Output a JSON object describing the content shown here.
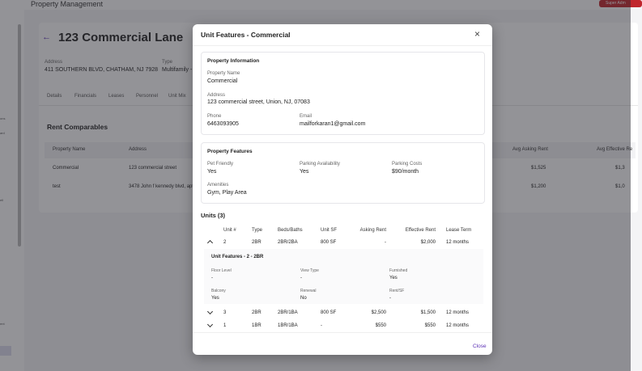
{
  "background": {
    "app_title": "Property Management",
    "user_button": "Super Adm",
    "property_name": "123 Commercial Lane",
    "address_label": "Address",
    "address": "411 SOUTHERN BLVD, CHATHAM, NJ 7928",
    "type_label": "Type",
    "type": "Multifamily -",
    "tabs": [
      "Details",
      "Financials",
      "Leases",
      "Personnel",
      "Unit Mix"
    ],
    "sidebar": [
      "ons",
      "ard",
      "ell",
      "ent"
    ],
    "section_title": "Rent Comparables",
    "table": {
      "headers": [
        "Property Name",
        "Address",
        "Avg Asking Rent",
        "Avg Effective Re"
      ],
      "rows": [
        [
          "Commercial",
          "123 commercial street",
          "$1,525",
          "$1,3"
        ],
        [
          "test",
          "3478 John f kennedy blvd, apt",
          "$1,200",
          "$1,0"
        ]
      ]
    }
  },
  "modal": {
    "title": "Unit Features - Commercial",
    "close_button": "Close",
    "property_information": {
      "heading": "Property Information",
      "name_label": "Property Name",
      "name": "Commercial",
      "address_label": "Address",
      "address": "123 commercial street, Union, NJ, 07083",
      "phone_label": "Phone",
      "phone": "6463093905",
      "email_label": "Email",
      "email": "mailforkaran1@gmail.com"
    },
    "property_features": {
      "heading": "Property Features",
      "pet_label": "Pet Friendly",
      "pet": "Yes",
      "parking_label": "Parking Availability",
      "parking": "Yes",
      "parking_cost_label": "Parking Costs",
      "parking_cost": "$90/month",
      "amenities_label": "Amenities",
      "amenities": "Gym, Play Area"
    },
    "units": {
      "heading": "Units (3)",
      "headers": [
        "Unit #",
        "Type",
        "Beds/Baths",
        "Unit SF",
        "Asking Rent",
        "Effective Rent",
        "Lease Term"
      ],
      "rows": [
        [
          "2",
          "2BR",
          "2BR/2BA",
          "800 SF",
          "-",
          "$2,000",
          "12 months"
        ],
        [
          "3",
          "2BR",
          "2BR/1BA",
          "800 SF",
          "$2,500",
          "$1,500",
          "12 months"
        ],
        [
          "1",
          "1BR",
          "1BR/1BA",
          "-",
          "$550",
          "$550",
          "12 months"
        ]
      ],
      "expanded": {
        "title": "Unit Features - 2 - 2BR",
        "fields": [
          [
            "Floor Level",
            "-"
          ],
          [
            "View Type",
            "-"
          ],
          [
            "Furnished",
            "Yes"
          ],
          [
            "Balcony",
            "Yes"
          ],
          [
            "Renewal",
            "No"
          ],
          [
            "Rent/SF",
            "-"
          ]
        ]
      }
    }
  }
}
